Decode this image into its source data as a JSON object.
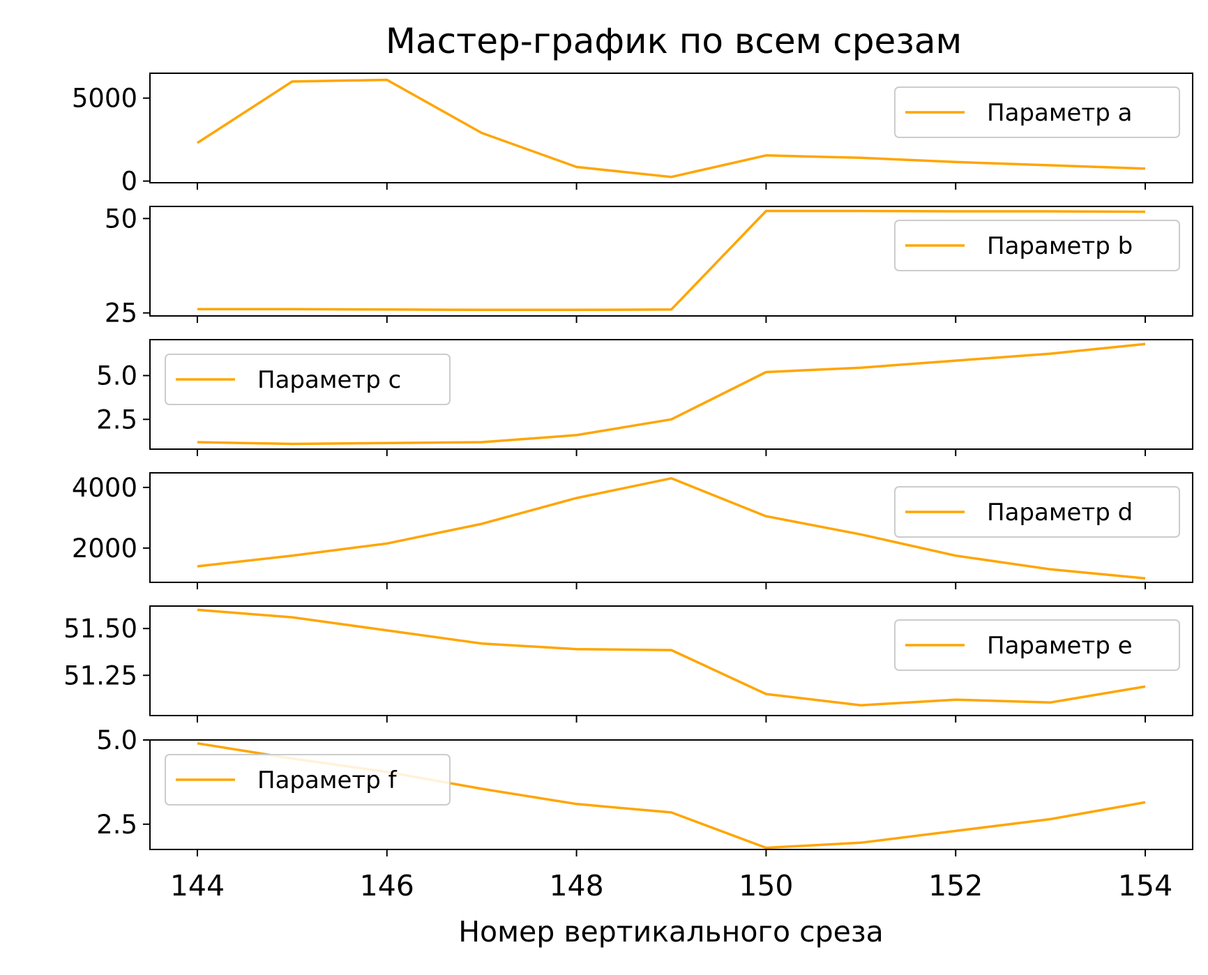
{
  "chart_data": {
    "type": "line",
    "title": "Мастер-график по всем срезам",
    "xlabel": "Номер вертикального среза",
    "x": [
      144,
      145,
      146,
      147,
      148,
      149,
      150,
      151,
      152,
      153,
      154
    ],
    "xlim": [
      143.5,
      154.5
    ],
    "xticks": [
      144,
      146,
      148,
      150,
      152,
      154
    ],
    "line_color": "#FFA500",
    "panels": [
      {
        "series_name": "Параметр a",
        "values": [
          2300,
          6000,
          6100,
          2900,
          850,
          250,
          1550,
          1400,
          1150,
          950,
          750
        ],
        "ylim": [
          -100,
          6500
        ],
        "yticks": [
          0,
          5000
        ],
        "ytick_labels": [
          "0",
          "5000"
        ],
        "legend_loc": "right"
      },
      {
        "series_name": "Параметр b",
        "values": [
          26.0,
          26.0,
          25.9,
          25.8,
          25.8,
          25.9,
          52.0,
          52.0,
          51.9,
          51.9,
          51.8
        ],
        "ylim": [
          24.2,
          53.2
        ],
        "yticks": [
          25,
          50
        ],
        "ytick_labels": [
          "25",
          "50"
        ],
        "legend_loc": "right"
      },
      {
        "series_name": "Параметр c",
        "values": [
          1.2,
          1.1,
          1.15,
          1.2,
          1.6,
          2.5,
          5.2,
          5.45,
          5.85,
          6.25,
          6.8
        ],
        "ylim": [
          0.8,
          7.05
        ],
        "yticks": [
          2.5,
          5.0
        ],
        "ytick_labels": [
          "2.5",
          "5.0"
        ],
        "legend_loc": "left"
      },
      {
        "series_name": "Параметр d",
        "values": [
          1400,
          1750,
          2150,
          2800,
          3650,
          4300,
          3050,
          2450,
          1750,
          1300,
          1000
        ],
        "ylim": [
          870,
          4480
        ],
        "yticks": [
          2000,
          4000
        ],
        "ytick_labels": [
          "2000",
          "4000"
        ],
        "legend_loc": "right"
      },
      {
        "series_name": "Параметр e",
        "values": [
          51.6,
          51.56,
          51.49,
          51.42,
          51.39,
          51.385,
          51.15,
          51.09,
          51.12,
          51.105,
          51.19
        ],
        "ylim": [
          51.035,
          51.62
        ],
        "yticks": [
          51.25,
          51.5
        ],
        "ytick_labels": [
          "51.25",
          "51.50"
        ],
        "legend_loc": "right"
      },
      {
        "series_name": "Параметр f",
        "values": [
          4.9,
          4.45,
          4.05,
          3.55,
          3.1,
          2.85,
          1.8,
          1.95,
          2.3,
          2.65,
          3.15
        ],
        "ylim": [
          1.75,
          5.0
        ],
        "yticks": [
          2.5,
          5.0
        ],
        "ytick_labels": [
          "2.5",
          "5.0"
        ],
        "legend_loc": "left"
      }
    ]
  }
}
